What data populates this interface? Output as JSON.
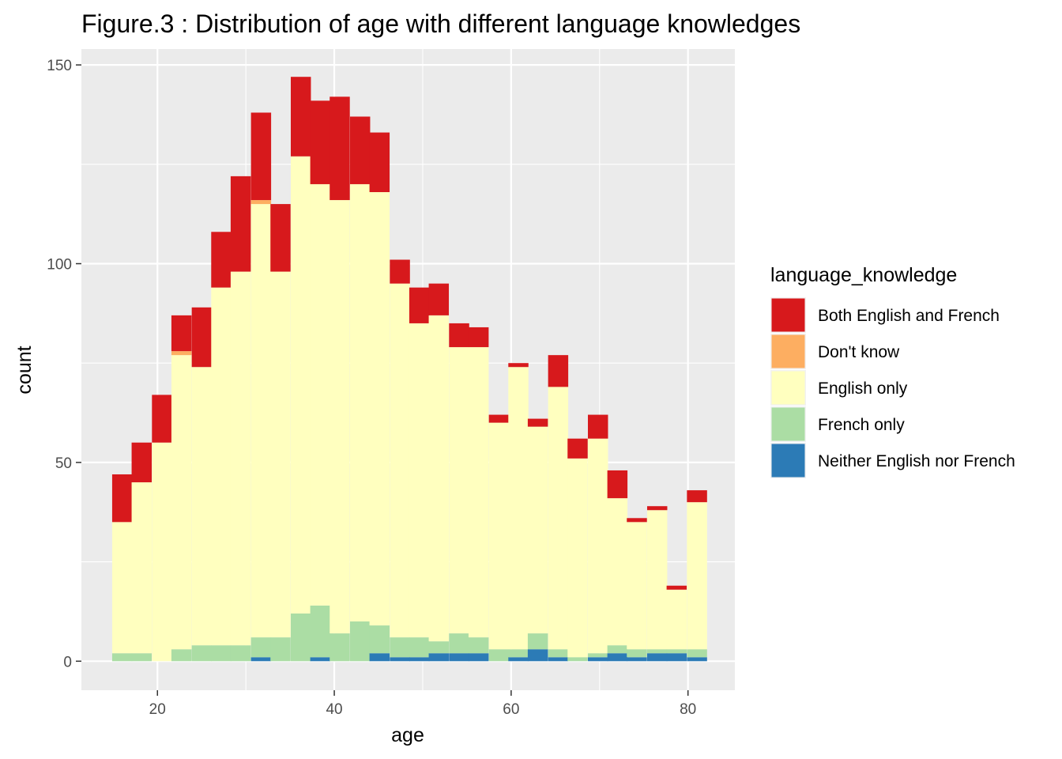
{
  "chart_data": {
    "type": "bar",
    "title": "Figure.3 : Distribution of age with different language knowledges",
    "xlabel": "age",
    "ylabel": "count",
    "stacked": true,
    "xlim": [
      11.4,
      85.3
    ],
    "ylim": [
      -7.3,
      154
    ],
    "x_ticks": [
      20,
      40,
      60,
      80
    ],
    "y_ticks": [
      0,
      50,
      100,
      150
    ],
    "grid": true,
    "legend": {
      "title": "language_knowledge",
      "position": "right"
    },
    "bin_width": 2.24,
    "x": [
      16.0,
      18.2,
      20.5,
      22.7,
      25.0,
      27.2,
      29.4,
      31.7,
      33.9,
      36.2,
      38.4,
      40.6,
      42.9,
      45.1,
      47.4,
      49.6,
      51.8,
      54.1,
      56.3,
      58.6,
      60.8,
      63.0,
      65.3,
      67.5,
      69.8,
      72.0,
      74.2,
      76.5,
      78.7,
      81.0
    ],
    "series": [
      {
        "name": "Neither English nor French",
        "color": "#2c7bb6",
        "values": [
          0,
          0,
          0,
          0,
          0,
          0,
          0,
          1,
          0,
          0,
          1,
          0,
          0,
          2,
          1,
          1,
          2,
          2,
          2,
          0,
          1,
          3,
          1,
          0,
          1,
          2,
          1,
          2,
          2,
          1
        ]
      },
      {
        "name": "French only",
        "color": "#abdda4",
        "values": [
          2,
          2,
          0,
          3,
          4,
          4,
          4,
          5,
          6,
          12,
          13,
          7,
          10,
          7,
          5,
          5,
          3,
          5,
          4,
          3,
          2,
          4,
          2,
          1,
          1,
          2,
          2,
          1,
          1,
          2
        ]
      },
      {
        "name": "English only",
        "color": "#ffffbf",
        "values": [
          33,
          43,
          55,
          74,
          70,
          90,
          94,
          109,
          92,
          115,
          106,
          109,
          110,
          109,
          89,
          79,
          82,
          72,
          73,
          57,
          71,
          52,
          66,
          50,
          54,
          37,
          32,
          35,
          15,
          37
        ]
      },
      {
        "name": "Don't know",
        "color": "#fdae61",
        "values": [
          0,
          0,
          0,
          1,
          0,
          0,
          0,
          1,
          0,
          0,
          0,
          0,
          0,
          0,
          0,
          0,
          0,
          0,
          0,
          0,
          0,
          0,
          0,
          0,
          0,
          0,
          0,
          0,
          0,
          0
        ]
      },
      {
        "name": "Both English and French",
        "color": "#d7191c",
        "values": [
          12,
          10,
          12,
          9,
          15,
          14,
          24,
          22,
          17,
          20,
          21,
          26,
          17,
          15,
          6,
          9,
          8,
          6,
          5,
          2,
          1,
          2,
          8,
          5,
          6,
          7,
          1,
          1,
          1,
          3
        ]
      }
    ],
    "legend_order": [
      "Both English and French",
      "Don't know",
      "English only",
      "French only",
      "Neither English nor French"
    ]
  }
}
